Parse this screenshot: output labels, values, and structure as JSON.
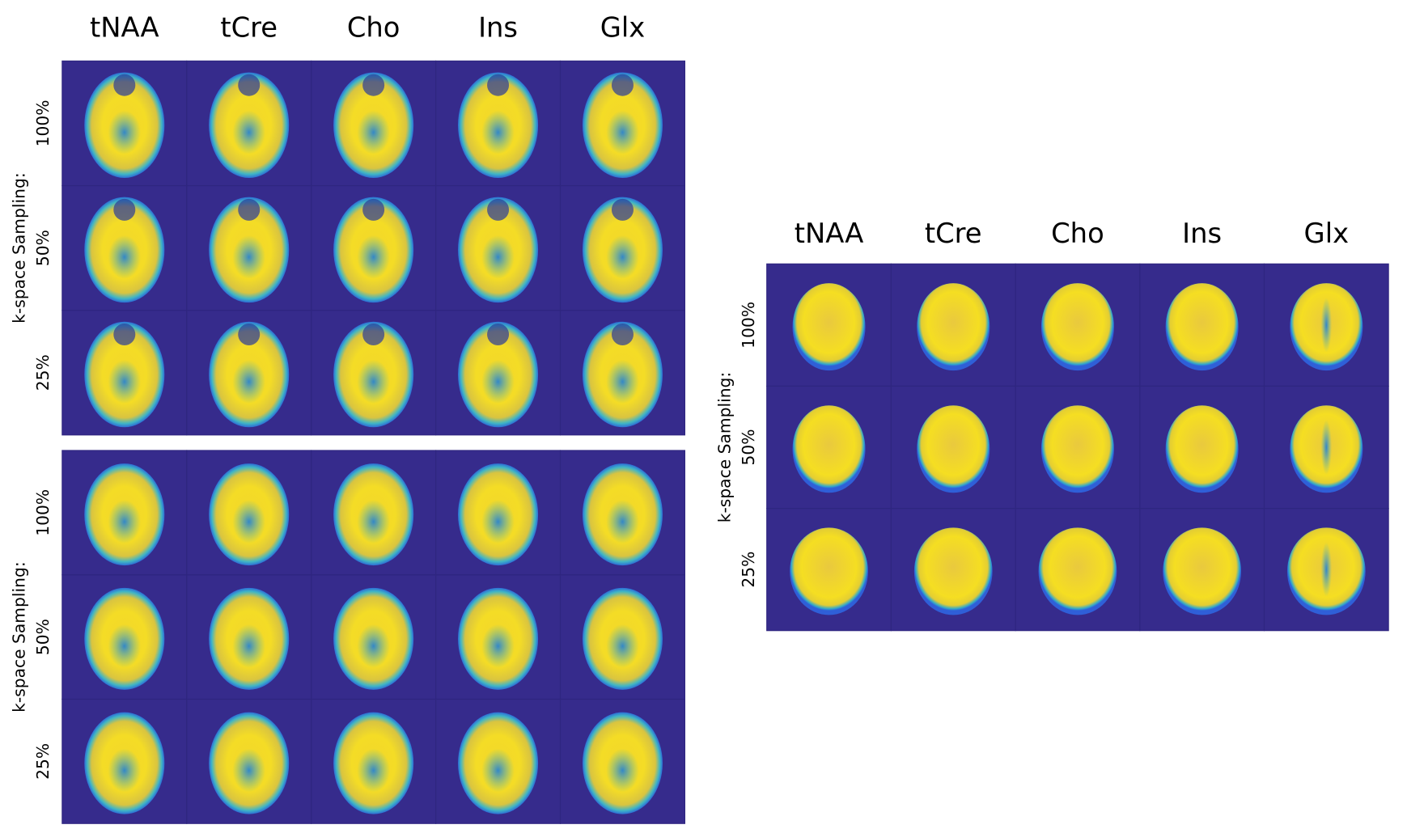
{
  "panels": [
    {
      "columns": [
        "tNAA",
        "tCre",
        "Cho",
        "Ins",
        "Glx"
      ],
      "axis_label": "k-space Sampling:",
      "rows": [
        "100%",
        "50%",
        "25%"
      ]
    },
    {
      "axis_label": "k-space Sampling:",
      "rows": [
        "100%",
        "50%",
        "25%"
      ]
    },
    {
      "columns": [
        "tNAA",
        "tCre",
        "Cho",
        "Ins",
        "Glx"
      ],
      "axis_label": "k-space Sampling:",
      "rows": [
        "100%",
        "50%",
        "25%"
      ]
    }
  ]
}
